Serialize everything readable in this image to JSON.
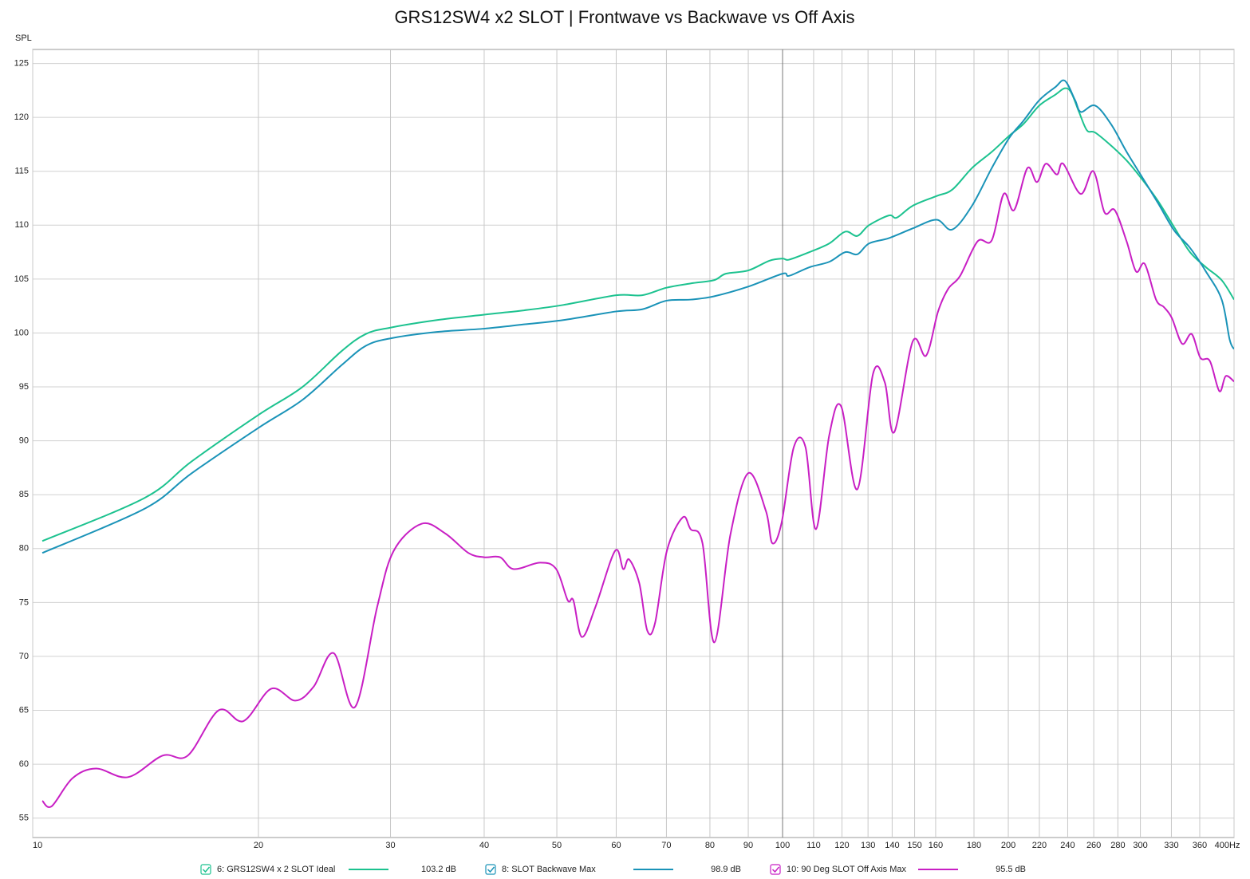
{
  "chart_data": {
    "type": "line",
    "title": "GRS12SW4 x2 SLOT | Frontwave vs Backwave vs Off Axis",
    "y_label": "SPL",
    "x_unit": "Hz",
    "log_x": true,
    "grid": true,
    "legend": "bottom",
    "xlim": [
      10,
      400
    ],
    "ylim": [
      53.2,
      126.3
    ],
    "xticks": [
      10,
      20,
      30,
      40,
      50,
      60,
      70,
      80,
      90,
      100,
      110,
      120,
      130,
      140,
      150,
      160,
      180,
      200,
      220,
      240,
      260,
      280,
      300,
      330,
      360,
      400
    ],
    "yticks": [
      55,
      60,
      65,
      70,
      75,
      80,
      85,
      90,
      95,
      100,
      105,
      110,
      115,
      120,
      125
    ],
    "series": [
      {
        "name": "6: GRS12SW4 x 2 SLOT Ideal",
        "color": "#1cc28f",
        "readout": "103.2 dB",
        "x": [
          10.3,
          14.1,
          16.3,
          20,
          22.9,
          25.8,
          27.8,
          30,
          34.6,
          40,
          45.2,
          51,
          60,
          65,
          70,
          75.5,
          81,
          84,
          90,
          96,
          100,
          102,
          108.6,
          115.4,
          121.2,
          125.8,
          130.4,
          138.6,
          142,
          149.1,
          160.4,
          168.4,
          178.9,
          190.1,
          200.6,
          209.6,
          220,
          231,
          237.9,
          242.6,
          248.5,
          254.6,
          261,
          274,
          287.6,
          302,
          317,
          332.9,
          349.4,
          366.9,
          385.1,
          400
        ],
        "values": [
          80.7,
          84.7,
          88.1,
          92.4,
          95.0,
          98.3,
          99.9,
          100.5,
          101.2,
          101.7,
          102.1,
          102.6,
          103.5,
          103.5,
          104.2,
          104.6,
          104.9,
          105.5,
          105.8,
          106.7,
          106.9,
          106.8,
          107.5,
          108.3,
          109.4,
          109.0,
          110.0,
          110.9,
          110.7,
          111.8,
          112.7,
          113.3,
          115.3,
          116.8,
          118.3,
          119.4,
          121.1,
          122.1,
          122.7,
          122.3,
          120.5,
          118.8,
          118.6,
          117.4,
          116.0,
          114.2,
          112.2,
          109.8,
          107.5,
          106.1,
          104.9,
          103.1
        ]
      },
      {
        "name": "8: SLOT Backwave Max",
        "color": "#1a93b8",
        "readout": "98.9 dB",
        "x": [
          10.3,
          14.1,
          16.3,
          20,
          22.9,
          25.8,
          27.8,
          30,
          34.6,
          40,
          45.2,
          51,
          60,
          65,
          70,
          75.5,
          81,
          90,
          100,
          102,
          108.6,
          115.4,
          121.2,
          125.8,
          130.4,
          138.6,
          149.1,
          160.4,
          168.4,
          178.9,
          190.1,
          200.6,
          209.6,
          220,
          231,
          237.9,
          245.5,
          250,
          261,
          274,
          287.6,
          302,
          317,
          332.9,
          349.4,
          366.9,
          385.1,
          394.6,
          400
        ],
        "values": [
          79.6,
          83.7,
          87.0,
          91.2,
          93.8,
          97.0,
          98.8,
          99.5,
          100.1,
          100.4,
          100.8,
          101.2,
          102.0,
          102.2,
          103.0,
          103.1,
          103.4,
          104.3,
          105.5,
          105.3,
          106.1,
          106.6,
          107.5,
          107.3,
          108.3,
          108.8,
          109.7,
          110.5,
          109.6,
          111.8,
          115.3,
          118.1,
          119.7,
          121.6,
          122.8,
          123.4,
          121.6,
          120.5,
          121.1,
          119.4,
          116.8,
          114.4,
          112.0,
          109.5,
          107.9,
          105.7,
          103.1,
          99.4,
          98.5
        ]
      },
      {
        "name": "10: 90 Deg SLOT Off Axis Max",
        "color": "#c81fc4",
        "readout": "95.5 dB",
        "x": [
          10.3,
          10.6,
          11.3,
          12.15,
          13.4,
          14.9,
          16.1,
          17.7,
          19.1,
          20.8,
          22.4,
          23.7,
          25.2,
          26.9,
          28.8,
          30.3,
          33,
          35.5,
          38.1,
          40,
          42,
          43.8,
          47.5,
          49.9,
          51.7,
          52.6,
          54,
          56.3,
          59.8,
          61.3,
          62.4,
          64.4,
          66,
          67.6,
          70.1,
          73.6,
          75.4,
          78.2,
          81.1,
          85.2,
          90,
          95,
          96.9,
          99.7,
          103.5,
          107.3,
          110.8,
          115.4,
          119.7,
          125.8,
          132,
          136.9,
          140.9,
          149.1,
          155.4,
          161.2,
          166.3,
          172.5,
          182,
          190.1,
          197.2,
          203.6,
          212.1,
          218.4,
          224.4,
          232.2,
          236.7,
          249.8,
          259.7,
          268.7,
          277.3,
          287.6,
          296.1,
          304.1,
          314.8,
          322.5,
          330.4,
          341.1,
          351.2,
          360.7,
          371.4,
          382.4,
          389.9,
          400
        ],
        "values": [
          56.6,
          56.1,
          58.7,
          59.6,
          58.8,
          60.8,
          60.8,
          65.0,
          64.0,
          67.0,
          65.9,
          67.2,
          70.3,
          65.3,
          74.6,
          79.8,
          82.3,
          81.4,
          79.6,
          79.2,
          79.2,
          78.1,
          78.7,
          78.1,
          75.2,
          75.2,
          71.8,
          74.6,
          79.8,
          78.1,
          79.0,
          76.8,
          72.4,
          73.1,
          79.8,
          82.9,
          81.8,
          80.5,
          71.3,
          81.3,
          87.0,
          83.5,
          80.5,
          82.4,
          89.4,
          89.4,
          81.8,
          90.5,
          93.2,
          85.5,
          96.2,
          95.4,
          90.8,
          99.2,
          97.9,
          102.0,
          104.1,
          105.3,
          108.5,
          108.6,
          112.9,
          111.4,
          115.3,
          114.0,
          115.7,
          114.7,
          115.7,
          112.9,
          115.0,
          111.2,
          111.4,
          108.5,
          105.7,
          106.4,
          103.1,
          102.4,
          101.4,
          99.0,
          99.9,
          97.7,
          97.4,
          94.6,
          96.0,
          95.5
        ]
      }
    ]
  }
}
